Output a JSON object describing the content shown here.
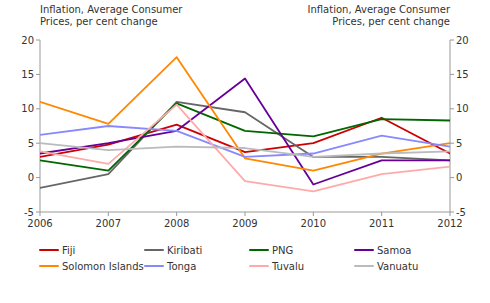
{
  "chart_data": {
    "type": "line",
    "y_label": "Inflation, Average Consumer\nPrices, per cent change",
    "y2_label": "Inflation, Average Consumer\nPrices, per cent change",
    "x": [
      2006,
      2007,
      2008,
      2009,
      2010,
      2011,
      2012
    ],
    "xlim": [
      2006,
      2012
    ],
    "xticks": [
      2006,
      2007,
      2008,
      2009,
      2010,
      2011,
      2012
    ],
    "ylim": [
      -5,
      20
    ],
    "yticks": [
      -5,
      0,
      5,
      10,
      15,
      20
    ],
    "y2lim": [
      -5,
      20
    ],
    "y2ticks": [
      -5,
      0,
      5,
      10,
      15,
      20
    ],
    "grid": false,
    "legend": "bottom",
    "series": [
      {
        "name": "Fiji",
        "color": "#cc0000",
        "values": [
          3.0,
          4.8,
          7.7,
          3.7,
          5.0,
          8.7,
          3.5
        ]
      },
      {
        "name": "Kiribati",
        "color": "#666666",
        "values": [
          -1.5,
          0.5,
          11.0,
          9.5,
          3.0,
          3.0,
          2.5
        ]
      },
      {
        "name": "PNG",
        "color": "#006600",
        "values": [
          2.5,
          1.0,
          10.8,
          6.8,
          6.0,
          8.5,
          8.3
        ]
      },
      {
        "name": "Samoa",
        "color": "#660099",
        "values": [
          3.5,
          5.0,
          6.8,
          14.4,
          -1.0,
          2.5,
          2.5
        ]
      },
      {
        "name": "Solomon Islands",
        "color": "#ff8800",
        "values": [
          11.0,
          7.8,
          17.5,
          2.8,
          1.0,
          3.5,
          5.0
        ]
      },
      {
        "name": "Tonga",
        "color": "#8888ff",
        "values": [
          6.2,
          7.5,
          6.8,
          3.0,
          3.5,
          6.1,
          4.5
        ]
      },
      {
        "name": "Tuvalu",
        "color": "#ffaaaa",
        "values": [
          3.8,
          2.0,
          10.6,
          -0.5,
          -2.0,
          0.5,
          1.6
        ]
      },
      {
        "name": "Vanuatu",
        "color": "#bbbbbb",
        "values": [
          5.0,
          4.0,
          4.5,
          4.3,
          3.0,
          3.5,
          3.8
        ]
      }
    ]
  }
}
